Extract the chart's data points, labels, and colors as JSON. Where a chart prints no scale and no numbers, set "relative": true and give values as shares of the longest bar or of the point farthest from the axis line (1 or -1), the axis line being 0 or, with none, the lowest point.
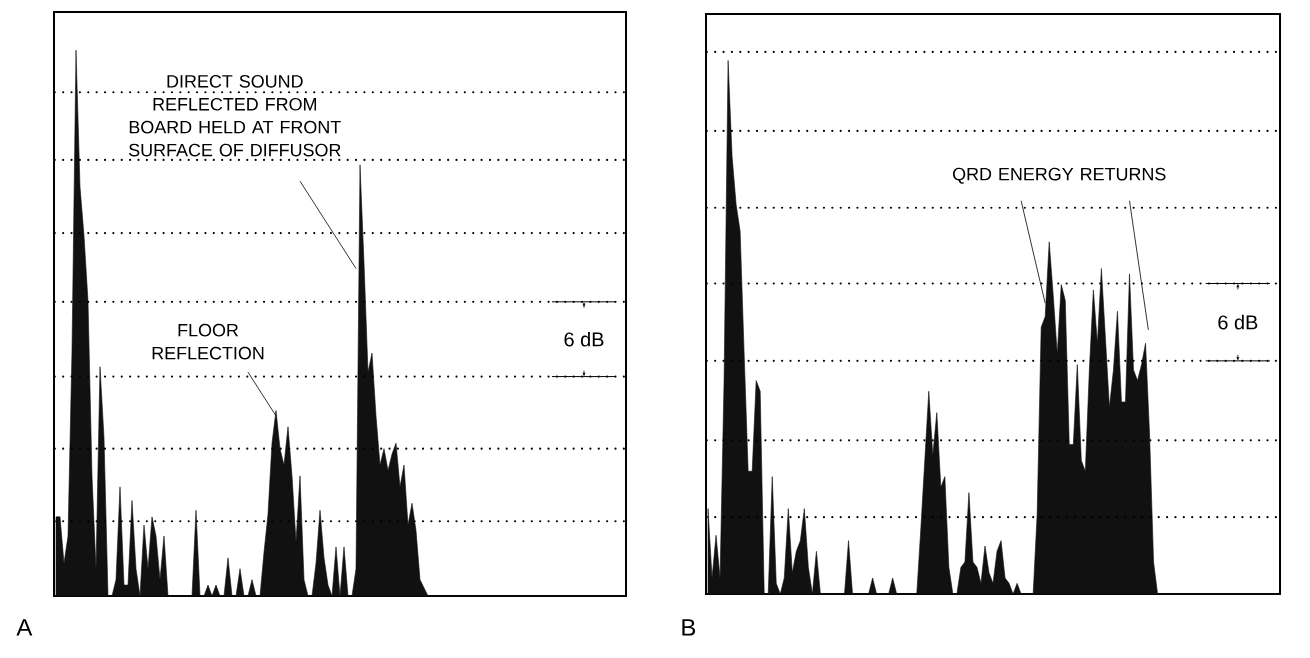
{
  "chart_data": [
    {
      "type": "area",
      "title": "A",
      "relative": true,
      "color": "#111111",
      "categories": [
        null,
        null,
        null,
        null,
        null,
        null,
        null,
        null,
        null,
        null,
        null,
        null,
        null,
        null,
        null,
        null,
        null,
        null,
        null,
        null,
        null,
        null,
        null,
        null,
        null,
        null,
        null,
        null,
        null,
        null,
        null,
        null,
        null,
        null,
        null,
        null,
        null,
        null,
        null,
        null,
        null,
        null,
        null,
        null,
        null,
        null,
        null,
        null,
        null,
        null,
        null,
        null,
        null,
        null,
        null,
        null,
        null,
        null,
        null,
        null,
        null,
        null,
        null,
        null,
        null,
        null,
        null,
        null,
        null,
        null,
        null,
        null,
        null,
        null,
        null,
        null,
        null,
        null,
        null,
        null,
        null,
        null,
        null,
        null,
        null,
        null,
        null,
        null,
        null,
        null,
        null,
        null,
        null,
        null,
        null,
        null,
        null,
        null,
        null,
        null,
        null,
        null,
        null,
        null,
        null,
        null,
        null,
        null,
        null,
        null,
        null,
        null,
        null,
        null,
        null,
        null,
        null,
        null,
        null,
        null,
        null,
        null,
        null,
        null,
        null,
        null,
        null,
        null,
        null,
        null,
        null,
        null,
        null,
        null,
        null,
        null,
        null,
        null,
        null,
        null,
        null,
        null,
        null
      ],
      "values": [
        0.145,
        0.145,
        0.06,
        0.11,
        0.45,
        1.0,
        0.75,
        0.66,
        0.54,
        0.22,
        0.05,
        0.42,
        0.29,
        0,
        0,
        0.03,
        0.2,
        0.02,
        0.02,
        0.175,
        0.05,
        0,
        0.13,
        0.05,
        0.145,
        0.11,
        0.03,
        0.11,
        0,
        0,
        0,
        0,
        0,
        0,
        0,
        0.157,
        0,
        0,
        0.02,
        0,
        0.02,
        0,
        0,
        0.07,
        0,
        0,
        0.05,
        0,
        0,
        0.03,
        0,
        0,
        0.08,
        0.15,
        0.28,
        0.34,
        0.27,
        0.24,
        0.31,
        0.22,
        0.1,
        0.22,
        0.03,
        0,
        0,
        0.06,
        0.157,
        0.07,
        0.02,
        0,
        0.09,
        0,
        0.09,
        0,
        0,
        0.05,
        0.79,
        0.61,
        0.41,
        0.445,
        0.33,
        0.24,
        0.27,
        0.23,
        0.26,
        0.28,
        0.2,
        0.24,
        0.13,
        0.17,
        0.12,
        0.03,
        0.015,
        0,
        0,
        0,
        0,
        0,
        0,
        0,
        0,
        0,
        0,
        0,
        0,
        0,
        0,
        0,
        0,
        0,
        0,
        0,
        0,
        0,
        0,
        0,
        0,
        0,
        0,
        0,
        0,
        0,
        0,
        0,
        0,
        0,
        0,
        0,
        0,
        0,
        0,
        0,
        0,
        0,
        0,
        0,
        0,
        0,
        0,
        0,
        0,
        0,
        0
      ],
      "ref_lines": [
        {
          "axis": "y",
          "value": 0.923,
          "line_style": "dotted",
          "color": "#000000"
        },
        {
          "axis": "y",
          "value": 0.799,
          "line_style": "dotted",
          "color": "#000000"
        },
        {
          "axis": "y",
          "value": 0.665,
          "line_style": "dotted",
          "color": "#000000"
        },
        {
          "axis": "y",
          "value": 0.539,
          "line_style": "dotted",
          "color": "#000000"
        },
        {
          "axis": "y",
          "value": 0.402,
          "line_style": "dotted",
          "color": "#000000"
        },
        {
          "axis": "y",
          "value": 0.27,
          "line_style": "dotted",
          "color": "#000000"
        },
        {
          "axis": "y",
          "value": 0.137,
          "line_style": "dotted",
          "color": "#000000"
        }
      ],
      "annotations": [
        "DIRECT SOUND REFLECTED FROM BOARD HELD AT FRONT SURFACE OF DIFFUSOR",
        "FLOOR REFLECTION",
        "6 dB"
      ]
    },
    {
      "type": "area",
      "title": "B",
      "relative": true,
      "color": "#111111",
      "categories": [
        null,
        null,
        null,
        null,
        null,
        null,
        null,
        null,
        null,
        null,
        null,
        null,
        null,
        null,
        null,
        null,
        null,
        null,
        null,
        null,
        null,
        null,
        null,
        null,
        null,
        null,
        null,
        null,
        null,
        null,
        null,
        null,
        null,
        null,
        null,
        null,
        null,
        null,
        null,
        null,
        null,
        null,
        null,
        null,
        null,
        null,
        null,
        null,
        null,
        null,
        null,
        null,
        null,
        null,
        null,
        null,
        null,
        null,
        null,
        null,
        null,
        null,
        null,
        null,
        null,
        null,
        null,
        null,
        null,
        null,
        null,
        null,
        null,
        null,
        null,
        null,
        null,
        null,
        null,
        null,
        null,
        null,
        null,
        null,
        null,
        null,
        null,
        null,
        null,
        null,
        null,
        null,
        null,
        null,
        null,
        null,
        null,
        null,
        null,
        null,
        null,
        null,
        null,
        null,
        null,
        null,
        null,
        null,
        null,
        null,
        null,
        null,
        null,
        null,
        null,
        null,
        null,
        null,
        null,
        null,
        null,
        null,
        null,
        null,
        null,
        null,
        null,
        null,
        null,
        null,
        null,
        null,
        null,
        null,
        null,
        null,
        null,
        null,
        null,
        null,
        null,
        null,
        null
      ],
      "values": [
        0.16,
        0.03,
        0.11,
        0.03,
        0.4,
        1.0,
        0.82,
        0.73,
        0.68,
        0.45,
        0.23,
        0.23,
        0.4,
        0.38,
        0,
        0,
        0.22,
        0.02,
        0,
        0.03,
        0.16,
        0.04,
        0.08,
        0.1,
        0.16,
        0.05,
        0,
        0.08,
        0,
        0,
        0,
        0,
        0,
        0,
        0,
        0.1,
        0,
        0,
        0,
        0,
        0,
        0.03,
        0,
        0,
        0,
        0,
        0.03,
        0,
        0,
        0,
        0,
        0,
        0,
        0.12,
        0.25,
        0.38,
        0.26,
        0.34,
        0.2,
        0.22,
        0.05,
        0,
        0,
        0.05,
        0.06,
        0.19,
        0.06,
        0.05,
        0.02,
        0.09,
        0.04,
        0.02,
        0.08,
        0.1,
        0.03,
        0.02,
        0,
        0.02,
        0,
        0,
        0,
        0,
        0.15,
        0.5,
        0.52,
        0.66,
        0.56,
        0.45,
        0.58,
        0.55,
        0.28,
        0.28,
        0.43,
        0.25,
        0.23,
        0.42,
        0.57,
        0.47,
        0.61,
        0.48,
        0.35,
        0.42,
        0.53,
        0.36,
        0.36,
        0.6,
        0.42,
        0.4,
        0.43,
        0.47,
        0.3,
        0.06,
        0,
        0,
        0,
        0,
        0,
        0,
        0,
        0,
        0,
        0,
        0,
        0,
        0,
        0,
        0,
        0,
        0,
        0,
        0,
        0,
        0,
        0,
        0,
        0,
        0,
        0,
        0,
        0,
        0,
        0,
        0
      ],
      "ref_lines": [
        {
          "axis": "y",
          "value": 1.016,
          "line_style": "dotted",
          "color": "#000000"
        },
        {
          "axis": "y",
          "value": 0.868,
          "line_style": "dotted",
          "color": "#000000"
        },
        {
          "axis": "y",
          "value": 0.724,
          "line_style": "dotted",
          "color": "#000000"
        },
        {
          "axis": "y",
          "value": 0.582,
          "line_style": "dotted",
          "color": "#000000"
        },
        {
          "axis": "y",
          "value": 0.437,
          "line_style": "dotted",
          "color": "#000000"
        },
        {
          "axis": "y",
          "value": 0.288,
          "line_style": "dotted",
          "color": "#000000"
        },
        {
          "axis": "y",
          "value": 0.144,
          "line_style": "dotted",
          "color": "#000000"
        }
      ],
      "annotations": [
        "QRD ENERGY RETURNS",
        "6 dB"
      ]
    }
  ]
}
